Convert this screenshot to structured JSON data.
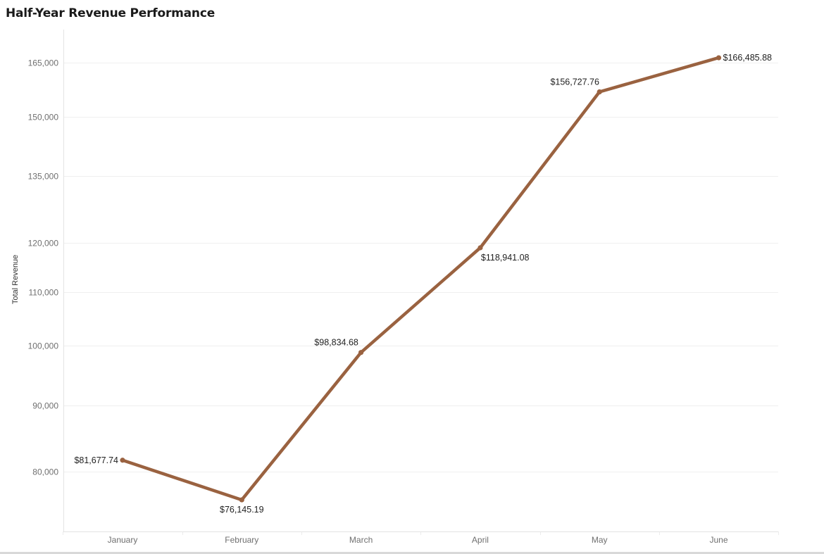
{
  "chart_data": {
    "type": "line",
    "title": "Half-Year Revenue Performance",
    "xlabel": "",
    "ylabel": "Total Revenue",
    "categories": [
      "January",
      "February",
      "March",
      "April",
      "May",
      "June"
    ],
    "series": [
      {
        "values": [
          81677.74,
          76145.19,
          98834.68,
          118941.08,
          156727.76,
          166485.88
        ],
        "labels": [
          "$81,677.74",
          "$76,145.19",
          "$98,834.68",
          "$118,941.08",
          "$156,727.76",
          "$166,485.88"
        ],
        "label_positions": [
          "left",
          "below",
          "above",
          "below",
          "above",
          "right"
        ],
        "color": "#9a6240"
      }
    ],
    "y_scale": "log",
    "ylim": [
      72000,
      175000
    ],
    "yticks": [
      80000,
      90000,
      100000,
      110000,
      120000,
      135000,
      150000,
      165000
    ],
    "ytick_labels": [
      "80,000",
      "90,000",
      "100,000",
      "110,000",
      "120,000",
      "135,000",
      "150,000",
      "165,000"
    ],
    "grid": true,
    "legend": "none"
  }
}
